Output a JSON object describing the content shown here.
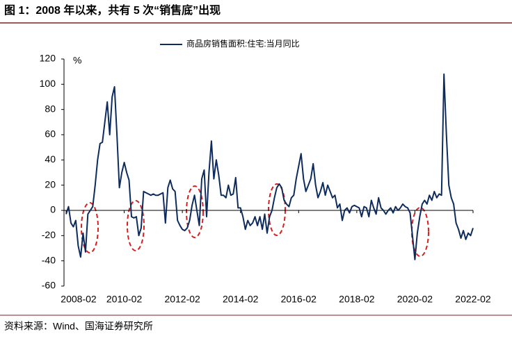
{
  "chart_data": {
    "type": "line",
    "title": "图 1：2008 年以来，共有 5 次“销售底”出现",
    "y_unit": "%",
    "source": "资料来源：Wind、国海证券研究所",
    "x": [
      "2008-02",
      "2008-03",
      "2008-04",
      "2008-05",
      "2008-06",
      "2008-07",
      "2008-08",
      "2008-09",
      "2008-10",
      "2008-11",
      "2008-12",
      "2009-01",
      "2009-02",
      "2009-03",
      "2009-04",
      "2009-05",
      "2009-06",
      "2009-07",
      "2009-08",
      "2009-09",
      "2009-10",
      "2009-11",
      "2009-12",
      "2010-01",
      "2010-02",
      "2010-03",
      "2010-04",
      "2010-05",
      "2010-06",
      "2010-07",
      "2010-08",
      "2010-09",
      "2010-10",
      "2010-11",
      "2010-12",
      "2011-01",
      "2011-02",
      "2011-03",
      "2011-04",
      "2011-05",
      "2011-06",
      "2011-07",
      "2011-08",
      "2011-09",
      "2011-10",
      "2011-11",
      "2011-12",
      "2012-01",
      "2012-02",
      "2012-03",
      "2012-04",
      "2012-05",
      "2012-06",
      "2012-07",
      "2012-08",
      "2012-09",
      "2012-10",
      "2012-11",
      "2012-12",
      "2013-01",
      "2013-02",
      "2013-03",
      "2013-04",
      "2013-05",
      "2013-06",
      "2013-07",
      "2013-08",
      "2013-09",
      "2013-10",
      "2013-11",
      "2013-12",
      "2014-01",
      "2014-02",
      "2014-03",
      "2014-04",
      "2014-05",
      "2014-06",
      "2014-07",
      "2014-08",
      "2014-09",
      "2014-10",
      "2014-11",
      "2014-12",
      "2015-01",
      "2015-02",
      "2015-03",
      "2015-04",
      "2015-05",
      "2015-06",
      "2015-07",
      "2015-08",
      "2015-09",
      "2015-10",
      "2015-11",
      "2015-12",
      "2016-01",
      "2016-02",
      "2016-03",
      "2016-04",
      "2016-05",
      "2016-06",
      "2016-07",
      "2016-08",
      "2016-09",
      "2016-10",
      "2016-11",
      "2016-12",
      "2017-01",
      "2017-02",
      "2017-03",
      "2017-04",
      "2017-05",
      "2017-06",
      "2017-07",
      "2017-08",
      "2017-09",
      "2017-10",
      "2017-11",
      "2017-12",
      "2018-01",
      "2018-02",
      "2018-03",
      "2018-04",
      "2018-05",
      "2018-06",
      "2018-07",
      "2018-08",
      "2018-09",
      "2018-10",
      "2018-11",
      "2018-12",
      "2019-01",
      "2019-02",
      "2019-03",
      "2019-04",
      "2019-05",
      "2019-06",
      "2019-07",
      "2019-08",
      "2019-09",
      "2019-10",
      "2019-11",
      "2019-12",
      "2020-01",
      "2020-02",
      "2020-03",
      "2020-04",
      "2020-05",
      "2020-06",
      "2020-07",
      "2020-08",
      "2020-09",
      "2020-10",
      "2020-11",
      "2020-12",
      "2021-01",
      "2021-02",
      "2021-03",
      "2021-04",
      "2021-05",
      "2021-06",
      "2021-07",
      "2021-08",
      "2021-09",
      "2021-10",
      "2021-11",
      "2021-12",
      "2022-01",
      "2022-02"
    ],
    "series": [
      {
        "name": "商品房销售面积:住宅:当月同比",
        "color": "#0d2b5c",
        "values": [
          -3,
          3,
          -10,
          -13,
          -8,
          -28,
          -37,
          -18,
          -33,
          -3,
          0,
          3,
          20,
          40,
          53,
          54,
          70,
          86,
          60,
          90,
          98,
          60,
          18,
          30,
          38,
          30,
          24,
          -5,
          -6,
          -5,
          -20,
          -14,
          15,
          14,
          13,
          12,
          13,
          12,
          12,
          13,
          14,
          -10,
          18,
          24,
          17,
          15,
          -8,
          -12,
          -15,
          -16,
          -14,
          -8,
          4,
          12,
          0,
          -12,
          25,
          32,
          -5,
          30,
          55,
          25,
          40,
          28,
          12,
          12,
          10,
          20,
          12,
          13,
          26,
          2,
          2,
          -5,
          -15,
          -8,
          -12,
          -10,
          -5,
          -12,
          -5,
          -15,
          -3,
          -18,
          -5,
          0,
          10,
          18,
          21,
          18,
          8,
          5,
          3,
          10,
          12,
          25,
          35,
          45,
          25,
          15,
          20,
          25,
          37,
          20,
          10,
          15,
          22,
          12,
          20,
          15,
          10,
          12,
          2,
          5,
          -8,
          0,
          2,
          -2,
          3,
          4,
          3,
          2,
          -5,
          3,
          2,
          -5,
          8,
          2,
          -3,
          10,
          2,
          0,
          -3,
          0,
          2,
          -2,
          3,
          0,
          2,
          5,
          3,
          2,
          -2,
          -20,
          -39,
          -18,
          -5,
          5,
          8,
          5,
          12,
          8,
          15,
          10,
          13,
          12,
          108,
          60,
          20,
          10,
          5,
          -10,
          -15,
          -22,
          -16,
          -23,
          -18,
          -20,
          -14
        ]
      }
    ],
    "xticks": [
      "2008-02",
      "2010-02",
      "2012-02",
      "2014-02",
      "2016-02",
      "2018-02",
      "2020-02",
      "2022-02"
    ],
    "ylim": [
      -60,
      120
    ],
    "yticks": [
      -60,
      -40,
      -20,
      0,
      20,
      40,
      60,
      80,
      100,
      120
    ]
  }
}
